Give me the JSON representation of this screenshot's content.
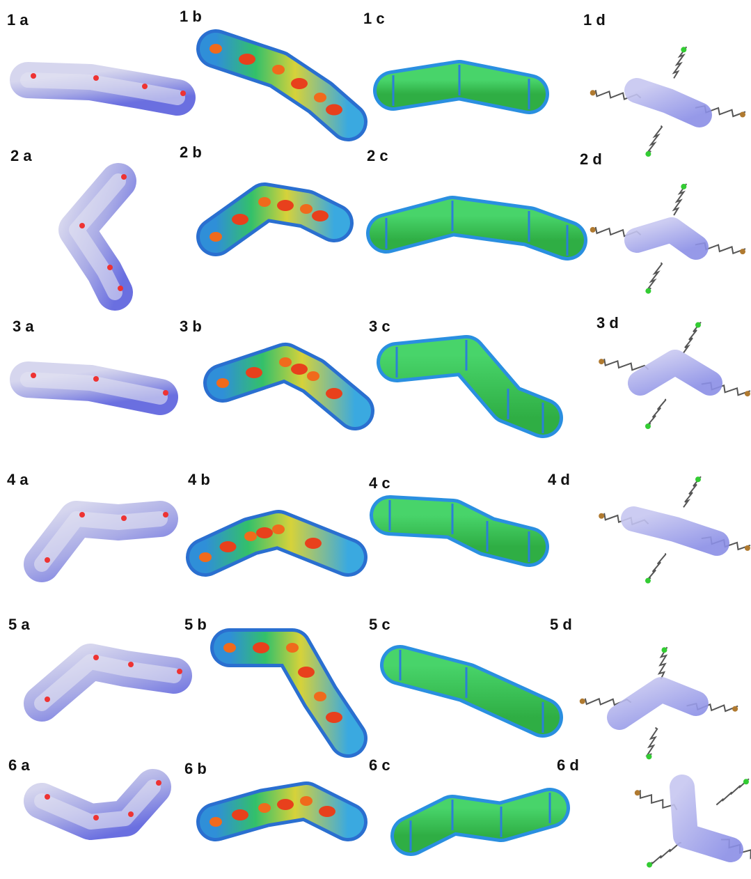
{
  "rows": [
    [
      "1 a",
      "1 b",
      "1 c",
      "1 d"
    ],
    [
      "2 a",
      "2 b",
      "2 c",
      "2 d"
    ],
    [
      "3 a",
      "3 b",
      "3 c",
      "3 d"
    ],
    [
      "4 a",
      "4 b",
      "4 c",
      "4 d"
    ],
    [
      "5 a",
      "5 b",
      "5 c",
      "5 d"
    ],
    [
      "6 a",
      "6 b",
      "6 c",
      "6 d"
    ]
  ]
}
